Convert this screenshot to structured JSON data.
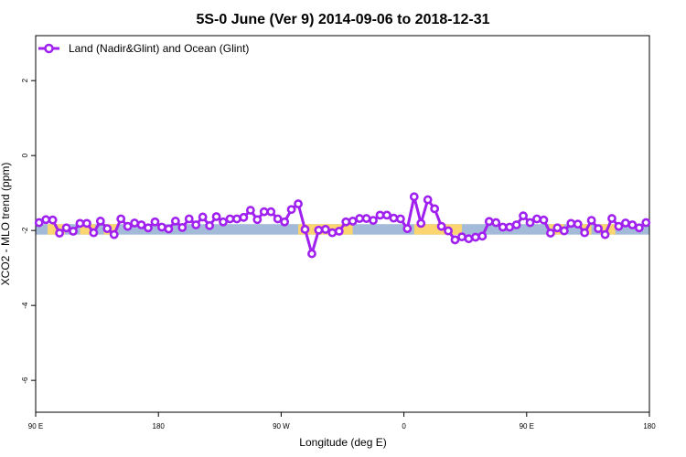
{
  "chart_data": {
    "type": "line",
    "title": "5S-0 June (Ver 9)   2014-09-06 to 2018-12-31",
    "xlabel": "Longitude (deg E)",
    "ylabel": "XCO2 - MLO trend (ppm)",
    "xlim": [
      90,
      450
    ],
    "ylim": [
      -6.85,
      3.2
    ],
    "xticks": [
      {
        "value": 90,
        "label": "90 E"
      },
      {
        "value": 180,
        "label": "180"
      },
      {
        "value": 270,
        "label": "90 W"
      },
      {
        "value": 360,
        "label": "0"
      },
      {
        "value": 450,
        "label": "90 E"
      },
      {
        "value": 540,
        "label": "180"
      }
    ],
    "yticks": [
      {
        "value": 2,
        "label": "2"
      },
      {
        "value": 0,
        "label": "0"
      },
      {
        "value": -2,
        "label": "-2"
      },
      {
        "value": -4,
        "label": "-4"
      },
      {
        "value": -6,
        "label": "-6"
      }
    ],
    "legend": {
      "position": "top-left",
      "entries": [
        "Land (Nadir&Glint) and Ocean (Glint)"
      ]
    },
    "colors": {
      "series": "#a020f0",
      "ocean": "#a3bad8",
      "land": "#fbd56f"
    },
    "surface_band": {
      "y_range": [
        -2.11,
        -1.83
      ],
      "ocean_range": [
        90,
        450
      ],
      "land_ranges": [
        [
          97,
          107
        ],
        [
          116,
          125
        ],
        [
          130,
          138
        ],
        [
          244,
          276
        ],
        [
          312,
          340
        ],
        [
          391,
          400
        ],
        [
          410,
          416
        ],
        [
          421,
          430
        ]
      ]
    },
    "series": [
      {
        "name": "Land (Nadir&Glint) and Ocean (Glint)",
        "x_start": 92,
        "x_step": 4,
        "values": [
          -1.79,
          -1.71,
          -1.72,
          -2.07,
          -1.93,
          -2.02,
          -1.81,
          -1.81,
          -2.06,
          -1.75,
          -1.95,
          -2.11,
          -1.69,
          -1.89,
          -1.8,
          -1.85,
          -1.93,
          -1.77,
          -1.91,
          -1.96,
          -1.75,
          -1.92,
          -1.69,
          -1.85,
          -1.64,
          -1.87,
          -1.63,
          -1.77,
          -1.69,
          -1.69,
          -1.65,
          -1.46,
          -1.71,
          -1.5,
          -1.5,
          -1.69,
          -1.77,
          -1.44,
          -1.29,
          -1.97,
          -2.62,
          -1.99,
          -1.97,
          -2.06,
          -2.02,
          -1.77,
          -1.75,
          -1.68,
          -1.68,
          -1.73,
          -1.59,
          -1.59,
          -1.67,
          -1.69,
          -1.95,
          -1.1,
          -1.81,
          -1.18,
          -1.42,
          -1.89,
          -2.01,
          -2.25,
          -2.17,
          -2.22,
          -2.18,
          -2.15,
          -1.76,
          -1.79,
          -1.91,
          -1.91,
          -1.85,
          -1.61,
          -1.79,
          -1.69,
          -1.72,
          -2.07,
          -1.93,
          -2.01,
          -1.81,
          -1.83,
          -2.06,
          -1.73,
          -1.95,
          -2.11,
          -1.68,
          -1.89,
          -1.8,
          -1.85,
          -1.93,
          -1.79
        ]
      }
    ]
  }
}
